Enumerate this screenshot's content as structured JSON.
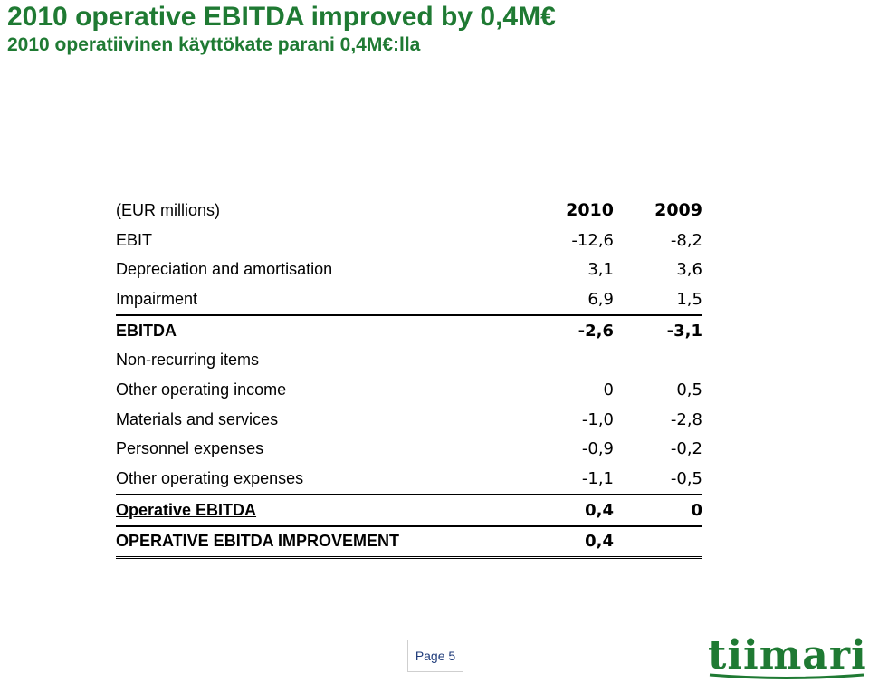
{
  "title": "2010 operative EBITDA improved by 0,4M€",
  "subtitle": "2010 operatiivinen käyttökate parani 0,4M€:lla",
  "table": {
    "unit_label": "(EUR millions)",
    "columns": [
      "2010",
      "2009"
    ],
    "rows": [
      {
        "label": "EBIT",
        "v2010": "-12,6",
        "v2009": "-8,2"
      },
      {
        "label": "Depreciation and amortisation",
        "v2010": "3,1",
        "v2009": "3,6"
      },
      {
        "label": "Impairment",
        "v2010": "6,9",
        "v2009": "1,5"
      },
      {
        "label": "EBITDA",
        "v2010": "-2,6",
        "v2009": "-3,1"
      },
      {
        "label": "Non-recurring items",
        "v2010": "",
        "v2009": ""
      },
      {
        "label": "Other operating income",
        "v2010": "0",
        "v2009": "0,5"
      },
      {
        "label": "Materials and services",
        "v2010": "-1,0",
        "v2009": "-2,8"
      },
      {
        "label": "Personnel expenses",
        "v2010": "-0,9",
        "v2009": "-0,2"
      },
      {
        "label": "Other operating expenses",
        "v2010": "-1,1",
        "v2009": "-0,5"
      },
      {
        "label": "Operative EBITDA",
        "v2010": "0,4",
        "v2009": "0"
      },
      {
        "label": "OPERATIVE EBITDA IMPROVEMENT",
        "v2010": "0,4",
        "v2009": ""
      }
    ]
  },
  "footer": {
    "page_label": "Page 5",
    "logo_text": "tiimari"
  },
  "colors": {
    "title": "#1f7a33",
    "logo": "#1f7a33",
    "page_label": "#1f3b7a"
  }
}
